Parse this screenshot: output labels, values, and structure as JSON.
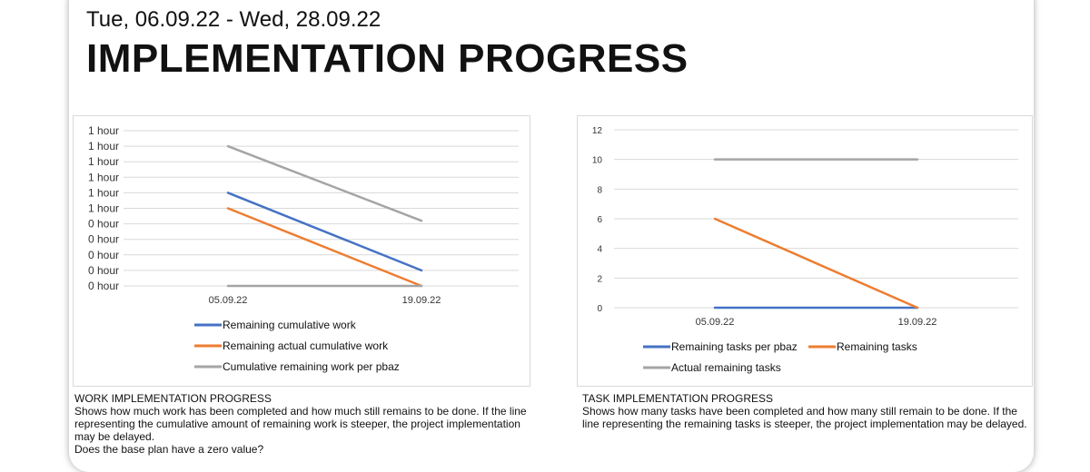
{
  "header": {
    "date_range": "Tue, 06.09.22 - Wed, 28.09.22",
    "title": "IMPLEMENTATION PROGRESS"
  },
  "work_section": {
    "heading": "WORK IMPLEMENTATION PROGRESS",
    "text": "Shows how much work has been completed and how much still remains to be done. If the line representing the cumulative amount of remaining work is steeper, the project implementation may be delayed.",
    "question": "Does the base plan have a zero value?"
  },
  "tasks_section": {
    "heading": "TASK IMPLEMENTATION PROGRESS",
    "text": "Shows how many tasks have been completed and how many still remain to be done. If the line representing the remaining tasks is steeper, the project implementation may be delayed."
  },
  "chart_data": [
    {
      "type": "line",
      "categories": [
        "05.09.22",
        "19.09.22"
      ],
      "y_tick_labels": [
        "1 hour",
        "1 hour",
        "1 hour",
        "1 hour",
        "1 hour",
        "1 hour",
        "0 hour",
        "0 hour",
        "0 hour",
        "0 hour",
        "0 hour"
      ],
      "ylim": [
        0,
        1
      ],
      "grid": true,
      "legend_position": "bottom",
      "series": [
        {
          "name": "Remaining cumulative work",
          "color": "#4472c4",
          "values": [
            0.6,
            0.1
          ]
        },
        {
          "name": "Remaining actual cumulative work",
          "color": "#ed7d31",
          "values": [
            0.5,
            0.0
          ]
        },
        {
          "name": "Cumulative remaining work per pbaz",
          "color": "#a5a5a5",
          "values": [
            0.0,
            0.0
          ]
        },
        {
          "name": "",
          "color": "#a5a5a5",
          "values": [
            0.9,
            0.42
          ]
        }
      ]
    },
    {
      "type": "line",
      "categories": [
        "05.09.22",
        "19.09.22"
      ],
      "y_tick_labels": [
        "0",
        "2",
        "4",
        "6",
        "8",
        "10",
        "12"
      ],
      "ylim": [
        0,
        12
      ],
      "grid": true,
      "legend_position": "bottom",
      "series": [
        {
          "name": "Remaining tasks per pbaz",
          "color": "#4472c4",
          "values": [
            0,
            0
          ]
        },
        {
          "name": "Remaining tasks",
          "color": "#ed7d31",
          "values": [
            6,
            0
          ]
        },
        {
          "name": "Actual remaining tasks",
          "color": "#a5a5a5",
          "values": [
            10,
            10
          ]
        }
      ]
    }
  ]
}
